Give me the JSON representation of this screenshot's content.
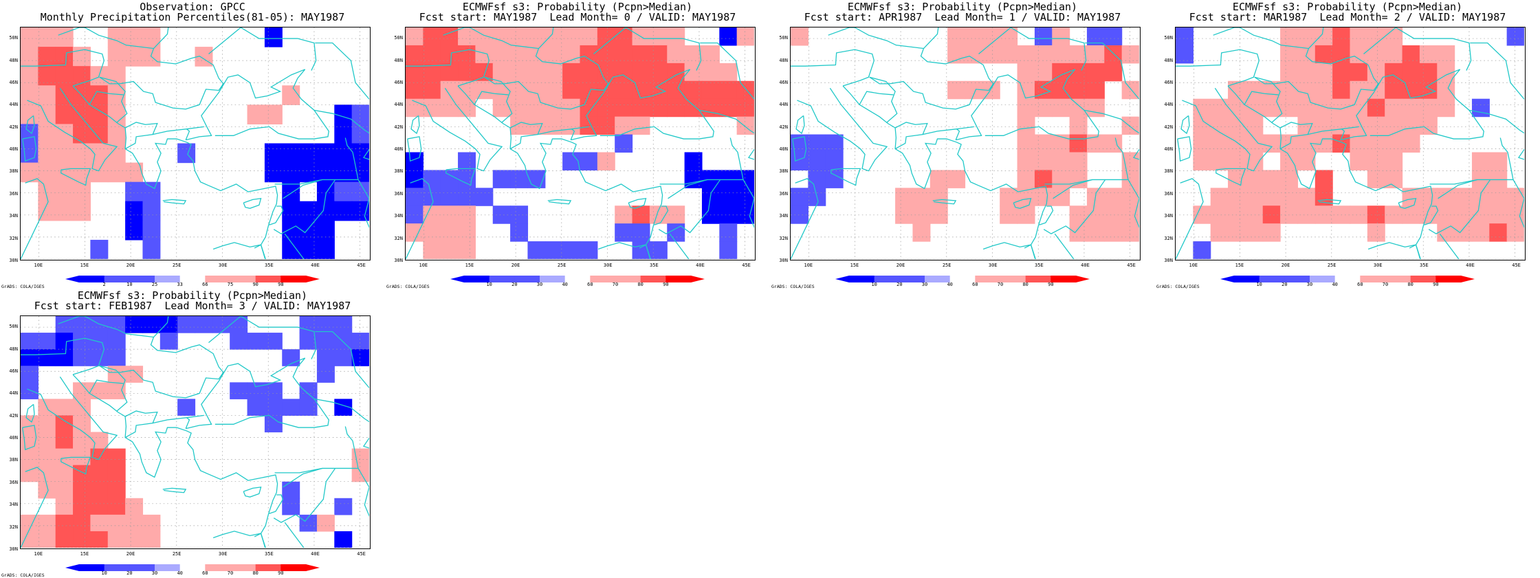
{
  "colors": {
    "deep_blue": "#0000ff",
    "blue": "#5555ff",
    "light_blue": "#aaaaff",
    "white": "#ffffff",
    "light_red": "#ffaaaa",
    "red": "#ff5555",
    "deep_red": "#ff0000",
    "coast": "#20c8c8",
    "grid": "#999999"
  },
  "panels": [
    {
      "title_line1": "Observation: GPCC",
      "title_line2": "Monthly Precipitation Percentiles(81-05): MAY1987",
      "credit": "GrADS: COLA/IGES",
      "colorbar_ticks": [
        "2",
        "10",
        "25",
        "33",
        "66",
        "75",
        "90",
        "98"
      ],
      "grid": [
        "r r r w w r r r w w w w w w B w w w w w",
        "r R R r w r r r w w r w w w w w w w w w",
        "r R R R r r w w w w w w w w w w w w w w",
        "r r R R R r w w w w w w w w w r w w w w",
        "r r R R R r w w w w w w w r r w w w B b",
        "b r r R R r w w w w w w w w w w w w B b",
        "b r r r r r w w w b w w w w B B B B B B",
        "r r r r r r r w w w w w w w B B B B B B",
        "w r r r w w b b w w w w w w w B w B b b",
        "w r r r w w B b w w w w w w w B B B B B",
        "w w w w w w B b w w w w w w w B B B w w",
        "w w w w b w w b w w w w w w w B B B w w"
      ]
    },
    {
      "title_line1": "ECMWFsf s3: Probability (Pcpn>Median)",
      "title_line2": "Fcst start: MAY1987  Lead Month= 0 / VALID: MAY1987",
      "credit": "GrADS: COLA/IGES",
      "colorbar_ticks": [
        "10",
        "20",
        "30",
        "40",
        "60",
        "70",
        "80",
        "90"
      ],
      "grid": [
        "r R R r r r r r r r r R R r r r w w B r",
        "R R R R r r r r r r R R R R R r r r w w",
        "R R R R R r r r r R R R R R R R r r r w",
        "R R r r r r r r r R R R R R R R R R R R",
        "r r r r w r r r r r R R R R R R R R R R",
        "w w w w w w r r r r R R r r w w w w w r",
        "w w w w w w w w w w w w b w w w w w w w",
        "B w w b w w w w w b b r w w w w B w w w",
        "B b b b w b b b w w w w w w w w B B B B",
        "b b b b b w w w w w w w w w w w w B B B",
        "b r r r w b b w w w w w r R r r w B B B",
        "r r r r w w b w w w w w b b w b w w b w",
        "w r r r w w w b b b b w w b b w w w b w"
      ]
    },
    {
      "title_line1": "ECMWFsf s3: Probability (Pcpn>Median)",
      "title_line2": "Fcst start: APR1987  Lead Month= 1 / VALID: MAY1987",
      "credit": "GrADS: COLA/IGES",
      "colorbar_ticks": [
        "10",
        "20",
        "30",
        "40",
        "60",
        "70",
        "80",
        "90"
      ],
      "grid": [
        "r w w w w w w w w r r r r w b r w b b w",
        "w w w w w w w w w r r r r r r r r r R r",
        "w w w w w w w w w w w w w r r R R R R w",
        "w w w w w w w w w r r r w r R R R R w r",
        "w w w w w w w w w w w w w r r r r r w w",
        "w w w w w w w w w w w w w r w w r w w r",
        "b b b w w w w w w w w w w r r r R r r w",
        "b b b w w w w w w w w w w r r r r w w r",
        "w b b w w w w w r r w w w r R r r w w r",
        "b b w w w w r r r w w w r r r r w r r r",
        "b w w w w w r r r w w w r r w w r r r r",
        "w w w w w w w r w w w w w w w w r r r r",
        "w w w w w w w w w w w w w w w w w w w w"
      ]
    },
    {
      "title_line1": "ECMWFsf s3: Probability (Pcpn>Median)",
      "title_line2": "Fcst start: MAR1987  Lead Month= 2 / VALID: MAY1987",
      "credit": "GrADS: COLA/IGES",
      "colorbar_ticks": [
        "10",
        "20",
        "30",
        "40",
        "60",
        "70",
        "80",
        "90"
      ],
      "grid": [
        "b w w w w w r r r R r r r w w w w w w b",
        "b w w w w w r r R R r r r R r r w w w w",
        "w w w w w w r r r R R r R R R r w w w w",
        "w w w r r r r r r R r r R R R r w w w w",
        "w r r r r r r r r r r R r r r r w b w w",
        "w r r r r w w r r r r r r r r w w w w w",
        "w r r r r r r r r R r r r r w w w w w w",
        "w r r r r w r r w w r r r w w w w r r w",
        "w w w r r r r w R w w r r w w w w r r w",
        "w w r r r r r r R w w w w r r r r r r r",
        "w r r r r R r r r r r R r r r r r r r r",
        "w w r r r r w w w w w r w w w r r r R r",
        "w b w w w w w w w w w w w w w w w w w w"
      ]
    },
    {
      "title_line1": "ECMWFsf s3: Probability (Pcpn>Median)",
      "title_line2": "Fcst start: FEB1987  Lead Month= 3 / VALID: MAY1987",
      "credit": "GrADS: COLA/IGES",
      "colorbar_ticks": [
        "10",
        "20",
        "30",
        "40",
        "60",
        "70",
        "80",
        "90"
      ],
      "grid": [
        "w w b b b b B B B b b b b w w w b b b w",
        "b b B b b b w w b w w w b b b w b b b b",
        "B B B b b b w w w w w w w w w b w b b B",
        "b w w w w r r w w w w w w w w w w b w w",
        "b w w r r r w w w w w w b b b w b w w w",
        "w r r r w w w w w b w w w b b b b w B w",
        "r r R r w w w w w w w w w w b w w w w w",
        "r r R r r w w w w w w w w w w w w w w w",
        "r r r r R R w w w w w w w w w w w w w r",
        "r r r R R R w w w w w w w w w w w w w r",
        "w r r R R R w w w w w w w w w b w w w w",
        "w w r R R R r w w w w w w w w b w w b w",
        "r r R R r r r r w w w w w w w w b r w w",
        "r r R R R r r r w w w w w w w w w w B w"
      ]
    }
  ],
  "lat_labels": [
    "50N",
    "48N",
    "46N",
    "44N",
    "42N",
    "40N",
    "38N",
    "36N",
    "34N",
    "32N",
    "30N"
  ],
  "lon_labels": [
    "10E",
    "15E",
    "20E",
    "25E",
    "30E",
    "35E",
    "40E",
    "45E"
  ]
}
